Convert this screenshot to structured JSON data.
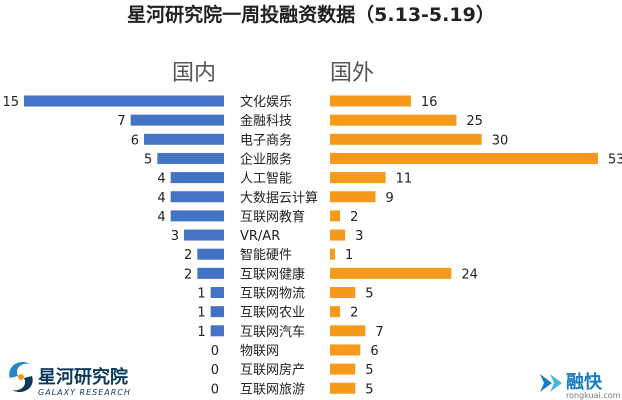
{
  "chart_data": {
    "type": "bar",
    "title": "星河研究院一周投融资数据（5.13-5.19）",
    "categories": [
      "文化娱乐",
      "金融科技",
      "电子商务",
      "企业服务",
      "人工智能",
      "大数据云计算",
      "互联网教育",
      "VR/AR",
      "智能硬件",
      "互联网健康",
      "互联网物流",
      "互联网农业",
      "互联网汽车",
      "物联网",
      "互联网房产",
      "互联网旅游"
    ],
    "series": [
      {
        "name": "国内",
        "color": "#4472c4",
        "values": [
          15,
          7,
          6,
          5,
          4,
          4,
          4,
          3,
          2,
          2,
          1,
          1,
          1,
          0,
          0,
          0
        ]
      },
      {
        "name": "国外",
        "color": "#f59a1c",
        "values": [
          16,
          25,
          30,
          53,
          11,
          9,
          2,
          3,
          1,
          24,
          5,
          2,
          7,
          6,
          5,
          5
        ]
      }
    ],
    "grid": false,
    "legend": "headings above each side"
  },
  "logos": {
    "left_name": "星河研究院",
    "left_sub": "GALAXY RESEARCH",
    "right_name": "融快",
    "right_sub": "rongkuai.com"
  }
}
